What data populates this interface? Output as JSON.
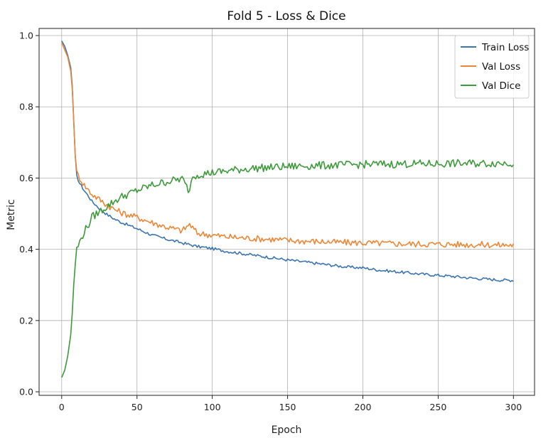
{
  "chart_data": {
    "type": "line",
    "title": "Fold 5 - Loss & Dice",
    "xlabel": "Epoch",
    "ylabel": "Metric",
    "xlim": [
      -15,
      314
    ],
    "ylim": [
      -0.01,
      1.02
    ],
    "xticks": [
      0,
      50,
      100,
      150,
      200,
      250,
      300
    ],
    "yticks": [
      0.0,
      0.2,
      0.4,
      0.6,
      0.8,
      1.0
    ],
    "xtick_labels": [
      "0",
      "50",
      "100",
      "150",
      "200",
      "250",
      "300"
    ],
    "ytick_labels": [
      "0.0",
      "0.2",
      "0.4",
      "0.6",
      "0.8",
      "1.0"
    ],
    "grid": true,
    "legend_position": "top-right",
    "series": [
      {
        "name": "Train Loss",
        "color": "#3b75af",
        "x": [
          0,
          2,
          4,
          6,
          7,
          8,
          9,
          10,
          12,
          15,
          18,
          20,
          25,
          30,
          35,
          40,
          50,
          60,
          70,
          80,
          90,
          100,
          110,
          120,
          130,
          140,
          150,
          160,
          170,
          180,
          190,
          200,
          210,
          220,
          230,
          240,
          250,
          260,
          270,
          280,
          290,
          300
        ],
        "values": [
          0.985,
          0.97,
          0.945,
          0.91,
          0.86,
          0.76,
          0.66,
          0.605,
          0.585,
          0.565,
          0.548,
          0.535,
          0.515,
          0.498,
          0.485,
          0.475,
          0.458,
          0.44,
          0.428,
          0.418,
          0.408,
          0.402,
          0.394,
          0.388,
          0.382,
          0.376,
          0.37,
          0.365,
          0.36,
          0.355,
          0.35,
          0.348,
          0.342,
          0.338,
          0.334,
          0.33,
          0.327,
          0.324,
          0.32,
          0.317,
          0.314,
          0.313
        ]
      },
      {
        "name": "Val Loss",
        "color": "#ef8636",
        "x": [
          0,
          2,
          4,
          6,
          7,
          8,
          9,
          10,
          12,
          15,
          18,
          20,
          25,
          30,
          35,
          40,
          50,
          60,
          70,
          80,
          85,
          90,
          100,
          110,
          120,
          130,
          140,
          150,
          160,
          170,
          180,
          190,
          200,
          210,
          220,
          230,
          240,
          250,
          260,
          270,
          280,
          290,
          300
        ],
        "values": [
          0.98,
          0.96,
          0.94,
          0.9,
          0.85,
          0.76,
          0.67,
          0.615,
          0.6,
          0.58,
          0.565,
          0.555,
          0.54,
          0.525,
          0.512,
          0.502,
          0.49,
          0.475,
          0.462,
          0.452,
          0.47,
          0.445,
          0.44,
          0.435,
          0.432,
          0.43,
          0.428,
          0.425,
          0.423,
          0.422,
          0.42,
          0.419,
          0.418,
          0.417,
          0.416,
          0.415,
          0.415,
          0.414,
          0.414,
          0.413,
          0.413,
          0.412,
          0.412
        ]
      },
      {
        "name": "Val Dice",
        "color": "#3d9a3a",
        "x": [
          0,
          2,
          4,
          6,
          7,
          8,
          9,
          10,
          12,
          15,
          18,
          20,
          25,
          30,
          35,
          40,
          50,
          60,
          70,
          80,
          85,
          86,
          90,
          100,
          110,
          120,
          130,
          140,
          150,
          160,
          170,
          180,
          190,
          200,
          210,
          220,
          230,
          240,
          250,
          260,
          270,
          280,
          290,
          300
        ],
        "values": [
          0.04,
          0.06,
          0.1,
          0.16,
          0.22,
          0.3,
          0.36,
          0.4,
          0.42,
          0.45,
          0.47,
          0.49,
          0.505,
          0.52,
          0.535,
          0.548,
          0.565,
          0.58,
          0.59,
          0.598,
          0.56,
          0.6,
          0.61,
          0.615,
          0.62,
          0.625,
          0.628,
          0.63,
          0.632,
          0.634,
          0.635,
          0.636,
          0.637,
          0.638,
          0.639,
          0.639,
          0.64,
          0.64,
          0.64,
          0.641,
          0.641,
          0.641,
          0.642,
          0.642
        ]
      }
    ]
  }
}
